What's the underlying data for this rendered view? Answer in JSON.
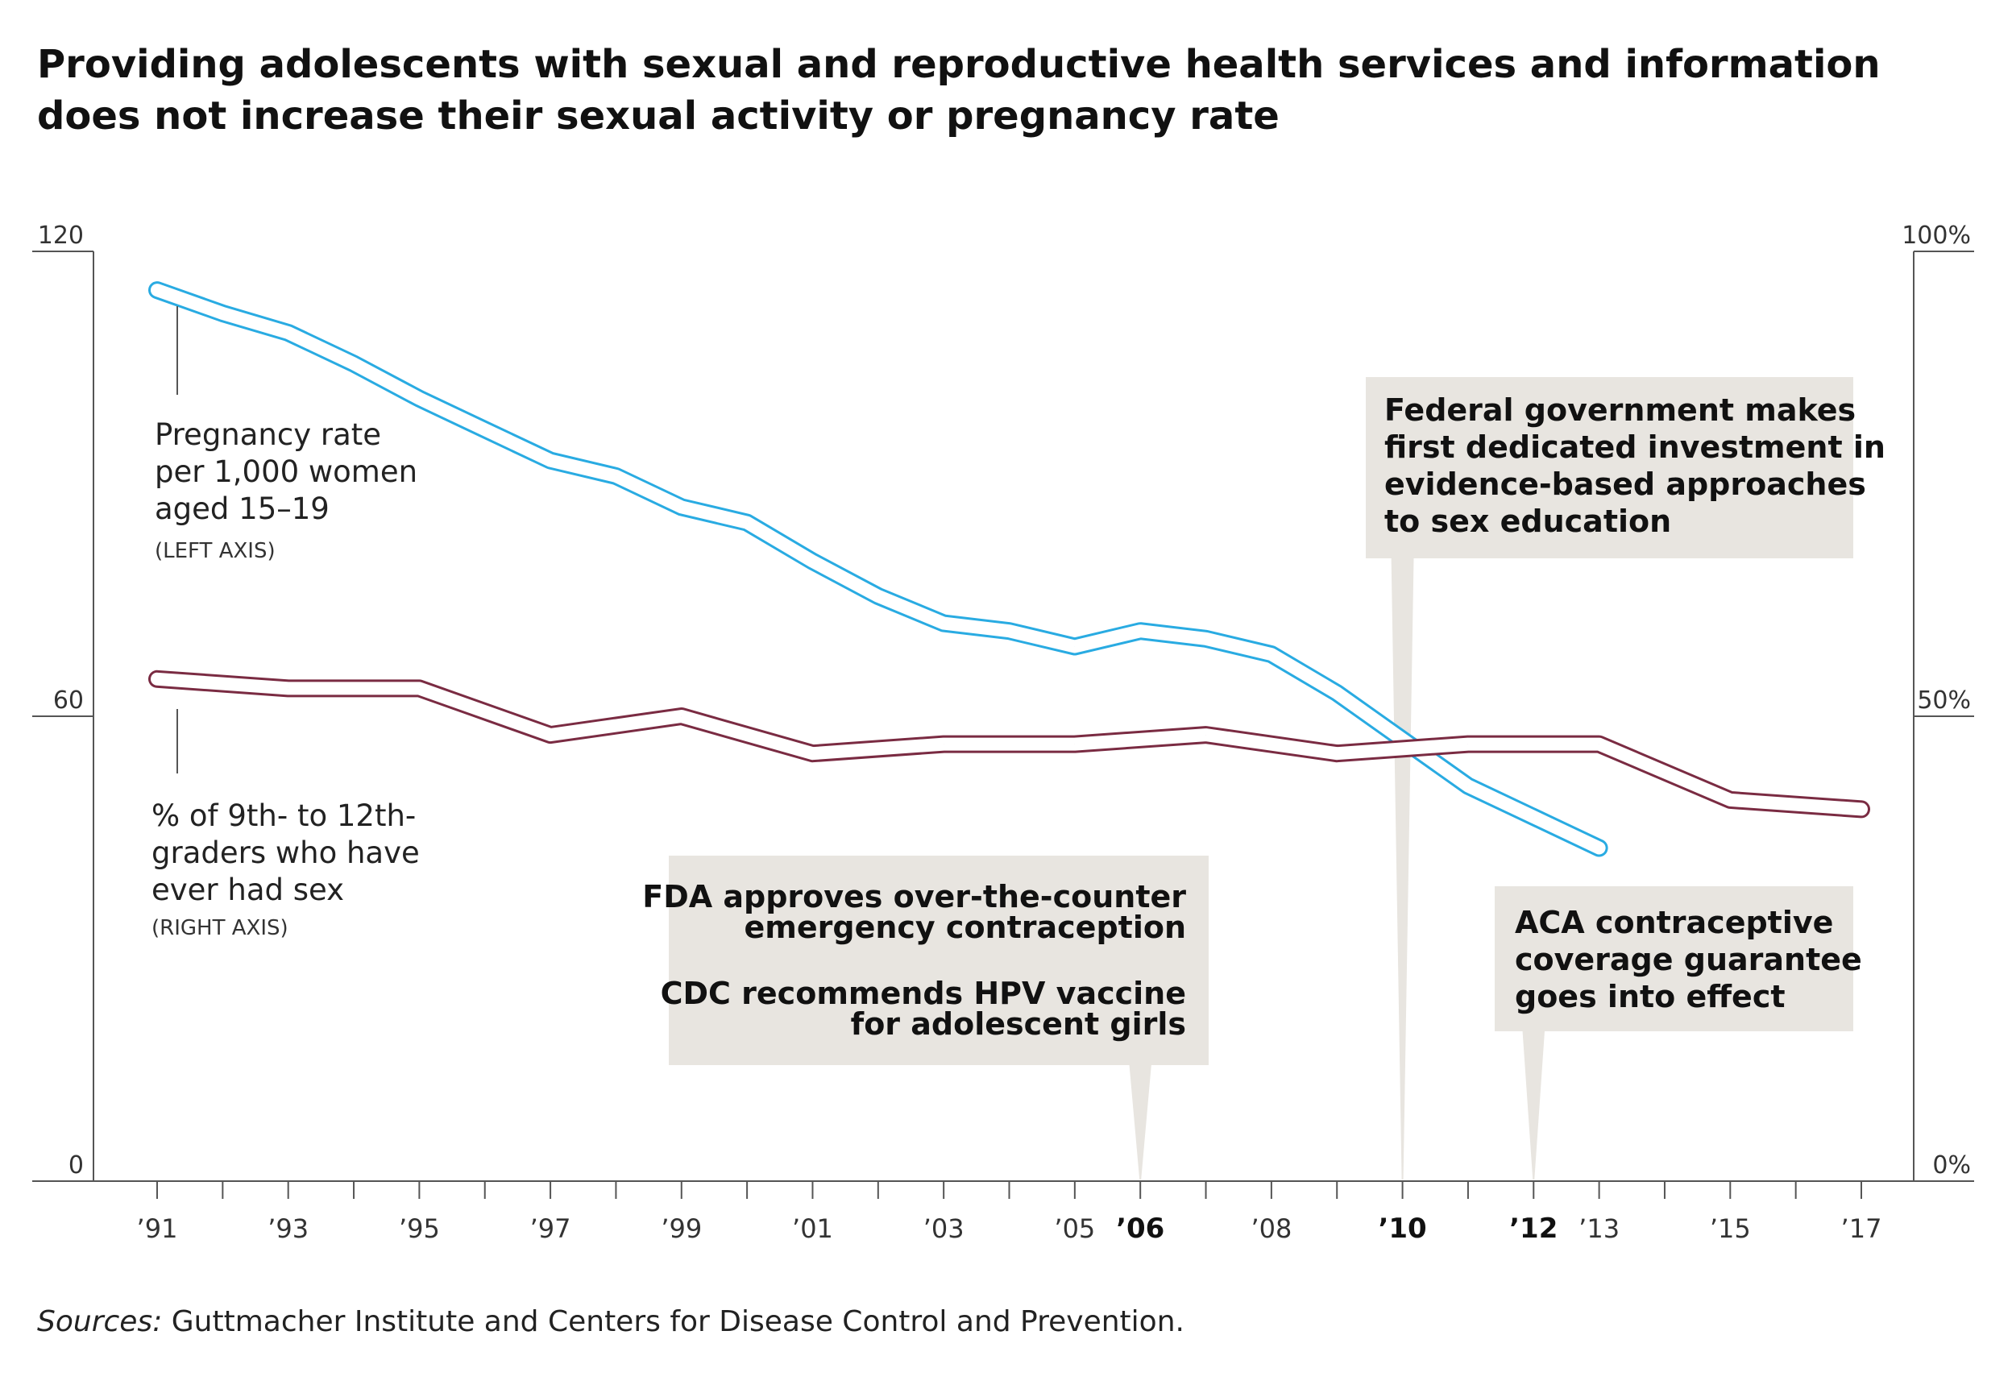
{
  "title_line1": "Providing adolescents with sexual and reproductive health services and information",
  "title_line2": "does not increase their sexual activity or pregnancy rate",
  "source_italic": "Sources:",
  "source_text": " Guttmacher Institute and Centers for Disease Control and Prevention.",
  "colors": {
    "pregnancy": "#29abe2",
    "sexual_activity": "#7a2b42",
    "annotation_bg": "#e8e5e0",
    "axis": "#555555"
  },
  "chart_data": {
    "type": "line",
    "x": [
      1991,
      1993,
      1995,
      1997,
      1999,
      2001,
      2003,
      2005,
      2006,
      2007,
      2008,
      2009,
      2010,
      2011,
      2012,
      2013,
      2015,
      2017
    ],
    "x_ticks": [
      1991,
      1992,
      1993,
      1994,
      1995,
      1996,
      1997,
      1998,
      1999,
      2000,
      2001,
      2002,
      2003,
      2004,
      2005,
      2006,
      2007,
      2008,
      2009,
      2010,
      2011,
      2012,
      2013,
      2014,
      2015,
      2016,
      2017
    ],
    "x_tick_labels": [
      {
        "year": 1991,
        "label": "’91",
        "bold": false
      },
      {
        "year": 1993,
        "label": "’93",
        "bold": false
      },
      {
        "year": 1995,
        "label": "’95",
        "bold": false
      },
      {
        "year": 1997,
        "label": "’97",
        "bold": false
      },
      {
        "year": 1999,
        "label": "’99",
        "bold": false
      },
      {
        "year": 2001,
        "label": "’01",
        "bold": false
      },
      {
        "year": 2003,
        "label": "’03",
        "bold": false
      },
      {
        "year": 2005,
        "label": "’05",
        "bold": false
      },
      {
        "year": 2006,
        "label": "’06",
        "bold": true
      },
      {
        "year": 2008,
        "label": "’08",
        "bold": false
      },
      {
        "year": 2010,
        "label": "’10",
        "bold": true
      },
      {
        "year": 2012,
        "label": "’12",
        "bold": true
      },
      {
        "year": 2013,
        "label": "’13",
        "bold": false
      },
      {
        "year": 2015,
        "label": "’15",
        "bold": false
      },
      {
        "year": 2017,
        "label": "’17",
        "bold": false
      }
    ],
    "xlim": [
      1991,
      2017
    ],
    "left_axis": {
      "ylim": [
        0,
        120
      ],
      "ticks": [
        0,
        60,
        120
      ],
      "tick_labels": [
        "0",
        "60",
        "120"
      ]
    },
    "right_axis": {
      "ylim": [
        0,
        100
      ],
      "ticks": [
        0,
        50,
        100
      ],
      "tick_labels": [
        "0%",
        "50%",
        "100%"
      ]
    },
    "series": [
      {
        "name": "Pregnancy rate per 1,000 women aged 15–19",
        "label_lines": [
          "Pregnancy rate",
          "per 1,000 women",
          "aged 15–19"
        ],
        "axis_note": "(LEFT AXIS)",
        "axis": "left",
        "x": [
          1991,
          1992,
          1993,
          1994,
          1995,
          1996,
          1997,
          1998,
          1999,
          2000,
          2001,
          2002,
          2003,
          2004,
          2005,
          2006,
          2007,
          2008,
          2009,
          2010,
          2011,
          2012,
          2013
        ],
        "values": [
          115,
          112,
          109.5,
          105.5,
          101,
          97,
          93,
          91,
          87,
          85,
          80,
          75.5,
          72,
          71,
          69,
          71,
          70,
          68,
          63,
          57,
          51,
          47,
          43
        ]
      },
      {
        "name": "% of 9th- to 12th-graders who have ever had sex",
        "label_lines": [
          "% of 9th- to 12th-",
          "graders who have",
          "ever had sex"
        ],
        "axis_note": "(RIGHT AXIS)",
        "axis": "right",
        "x": [
          1991,
          1993,
          1995,
          1997,
          1999,
          2001,
          2003,
          2005,
          2007,
          2009,
          2011,
          2013,
          2015,
          2017
        ],
        "values": [
          54,
          53,
          53,
          48,
          50,
          46,
          47,
          47,
          48,
          46,
          47,
          47,
          41,
          40
        ]
      }
    ],
    "annotations": [
      {
        "year": 2006,
        "lines": [
          "FDA approves over-the-counter",
          "emergency contraception"
        ],
        "lines2": [
          "CDC recommends HPV vaccine",
          "for adolescent girls"
        ],
        "align": "right"
      },
      {
        "year": 2010,
        "lines": [
          "Federal government makes",
          "first dedicated investment in",
          "evidence-based approaches",
          "to sex education"
        ],
        "align": "left"
      },
      {
        "year": 2012,
        "lines": [
          "ACA contraceptive",
          "coverage guarantee",
          "goes into effect"
        ],
        "align": "left"
      }
    ]
  }
}
